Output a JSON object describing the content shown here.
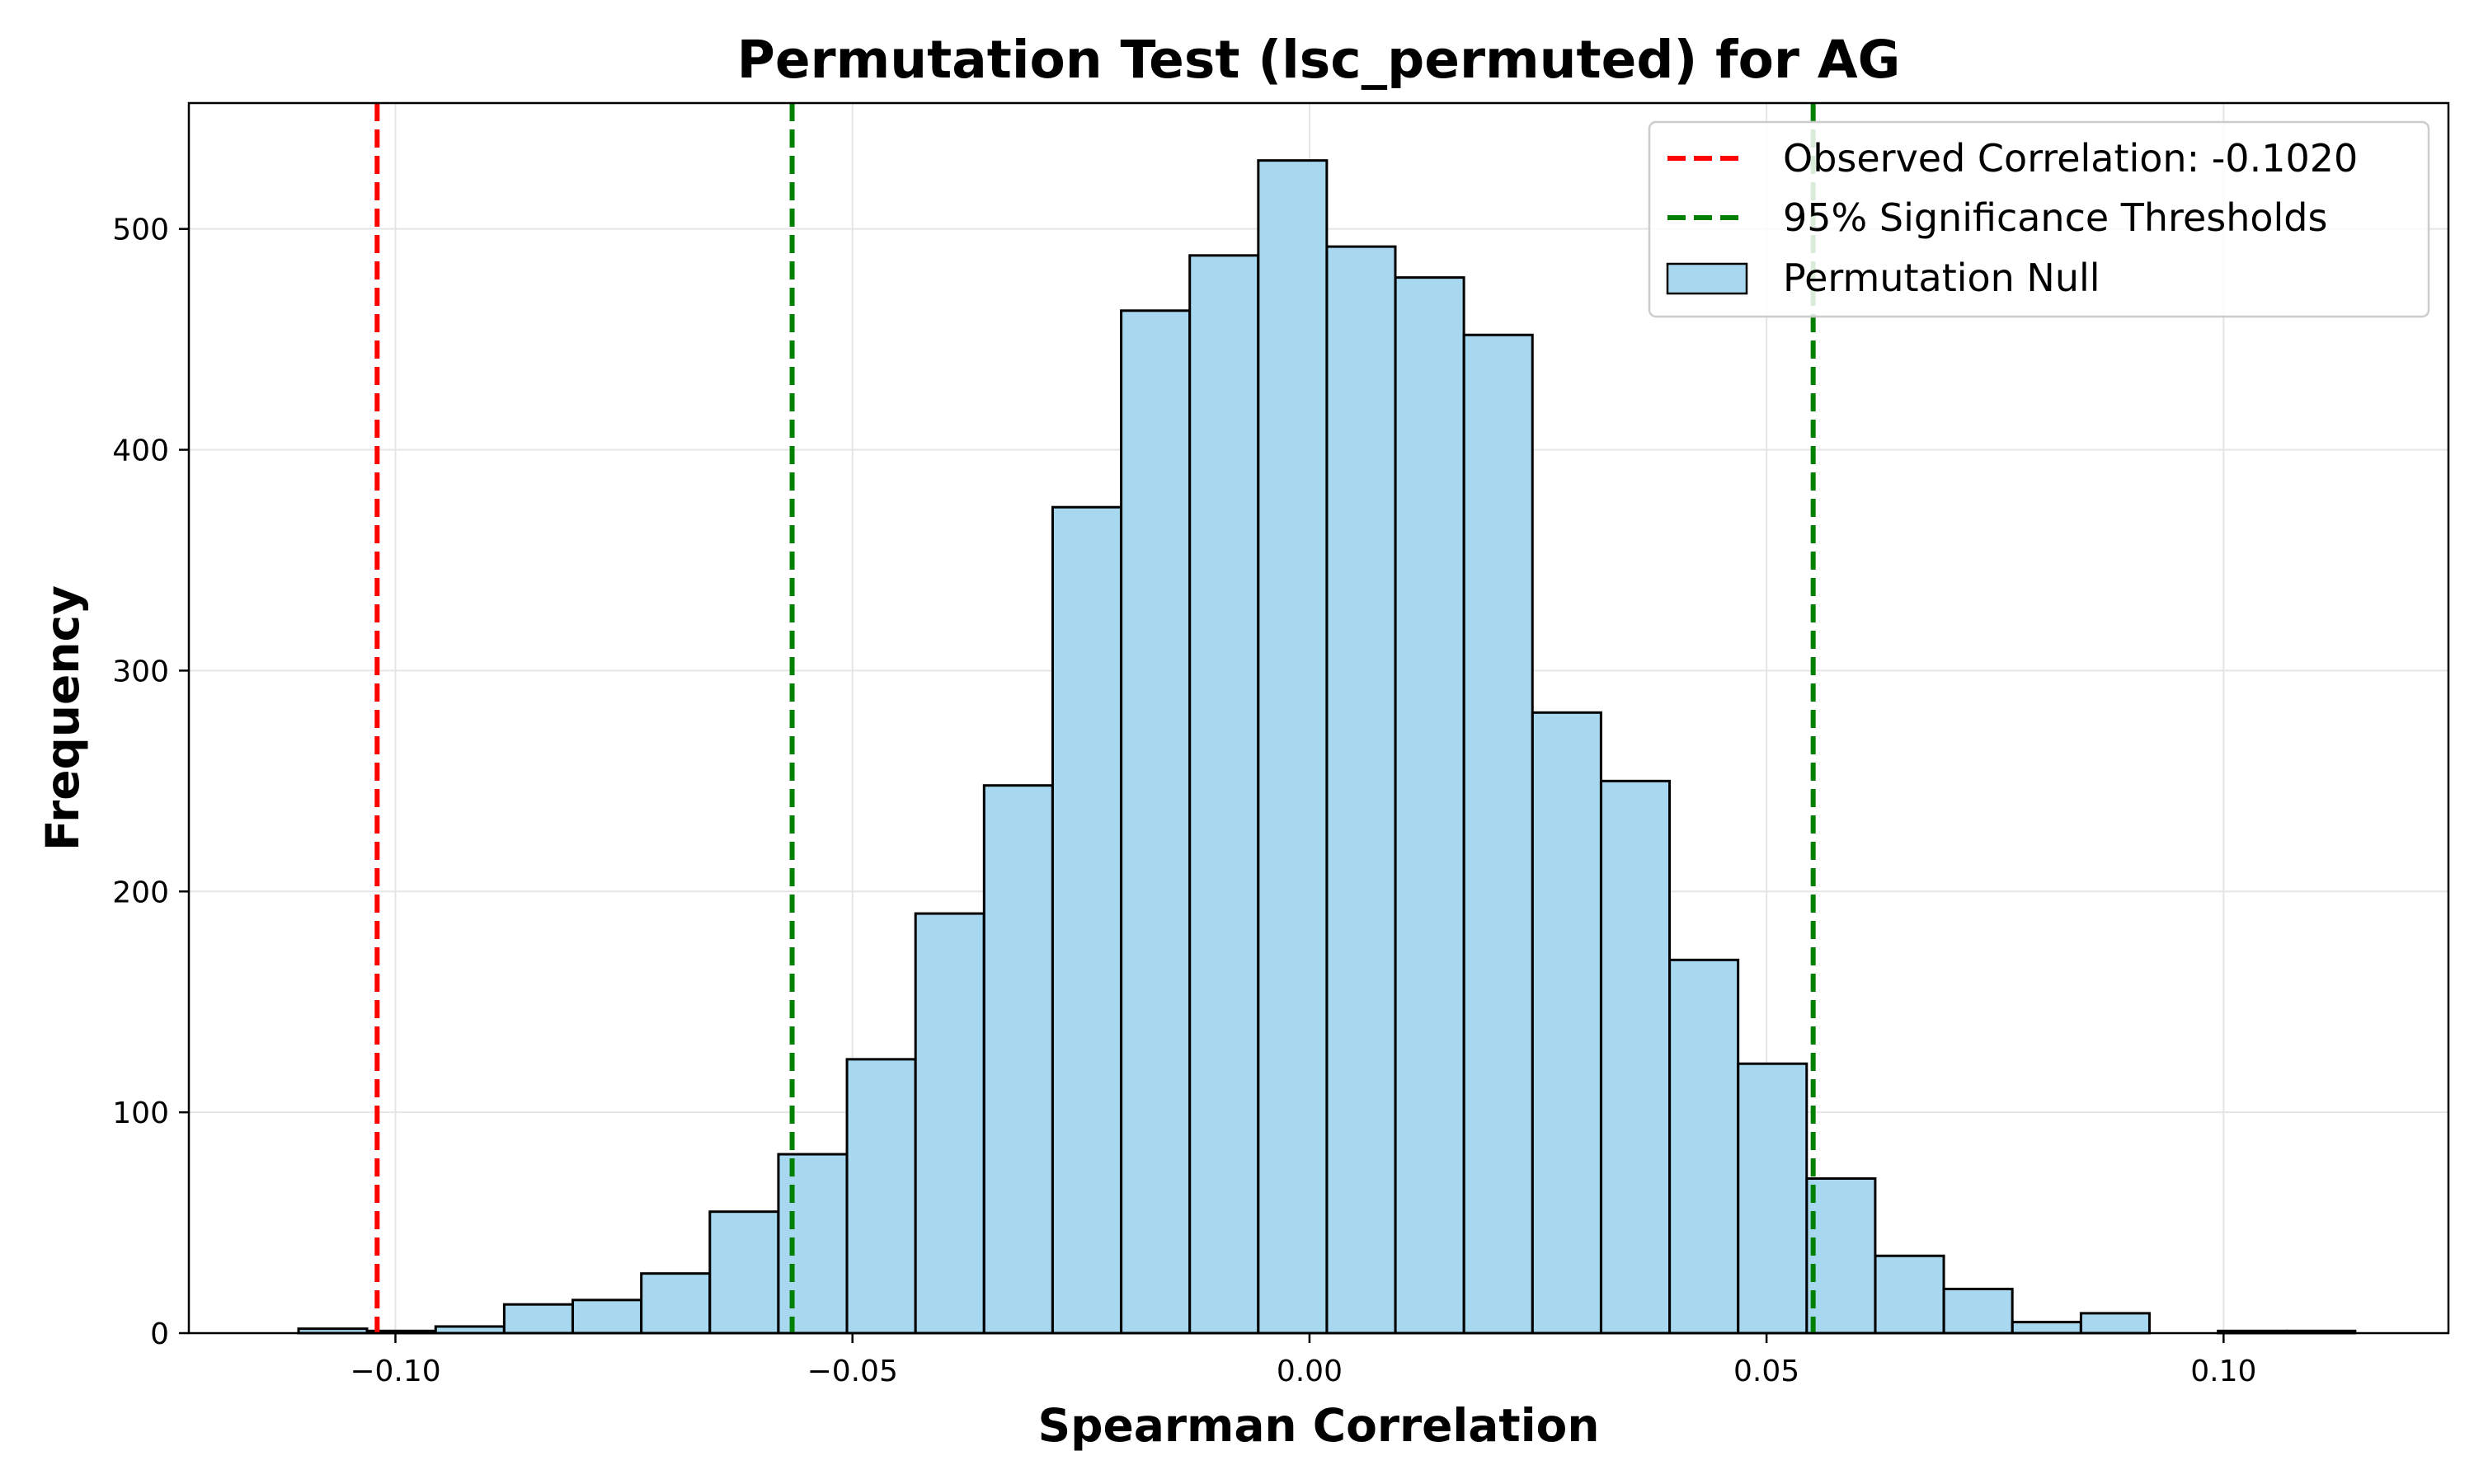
{
  "chart_data": {
    "type": "bar",
    "title": "Permutation Test (lsc_permuted) for AG",
    "xlabel": "Spearman Correlation",
    "ylabel": "Frequency",
    "xlim": [
      -0.1226,
      0.1246
    ],
    "ylim": [
      0,
      557
    ],
    "grid": true,
    "legend_position": "top-right",
    "bin_width": 0.00749,
    "bins": [
      {
        "x0": -0.1106,
        "count": 2
      },
      {
        "x0": -0.1031,
        "count": 1
      },
      {
        "x0": -0.0956,
        "count": 3
      },
      {
        "x0": -0.0881,
        "count": 13
      },
      {
        "x0": -0.0806,
        "count": 15
      },
      {
        "x0": -0.0731,
        "count": 27
      },
      {
        "x0": -0.0656,
        "count": 55
      },
      {
        "x0": -0.0581,
        "count": 81
      },
      {
        "x0": -0.0506,
        "count": 124
      },
      {
        "x0": -0.0431,
        "count": 190
      },
      {
        "x0": -0.0356,
        "count": 248
      },
      {
        "x0": -0.0281,
        "count": 374
      },
      {
        "x0": -0.0206,
        "count": 463
      },
      {
        "x0": -0.0131,
        "count": 488
      },
      {
        "x0": -0.0056,
        "count": 531
      },
      {
        "x0": 0.0019,
        "count": 492
      },
      {
        "x0": 0.0094,
        "count": 478
      },
      {
        "x0": 0.0169,
        "count": 452
      },
      {
        "x0": 0.0244,
        "count": 281
      },
      {
        "x0": 0.0319,
        "count": 250
      },
      {
        "x0": 0.0394,
        "count": 169
      },
      {
        "x0": 0.0469,
        "count": 122
      },
      {
        "x0": 0.0544,
        "count": 70
      },
      {
        "x0": 0.0619,
        "count": 35
      },
      {
        "x0": 0.0694,
        "count": 20
      },
      {
        "x0": 0.0769,
        "count": 5
      },
      {
        "x0": 0.0844,
        "count": 9
      },
      {
        "x0": 0.0919,
        "count": 0
      },
      {
        "x0": 0.0994,
        "count": 1
      },
      {
        "x0": 0.1069,
        "count": 1
      }
    ],
    "observed_correlation": -0.102,
    "thresholds": [
      -0.0566,
      0.0551
    ],
    "x_ticks": [
      -0.1,
      -0.05,
      0.0,
      0.05,
      0.1
    ],
    "x_tick_labels": [
      "−0.10",
      "−0.05",
      "0.00",
      "0.05",
      "0.10"
    ],
    "y_ticks": [
      0,
      100,
      200,
      300,
      400,
      500
    ],
    "y_tick_labels": [
      "0",
      "100",
      "200",
      "300",
      "400",
      "500"
    ],
    "legend": [
      {
        "label": "Observed Correlation: -0.1020",
        "kind": "dashed-line",
        "color": "#ff0000"
      },
      {
        "label": "95% Significance Thresholds",
        "kind": "dashed-line",
        "color": "#008000"
      },
      {
        "label": "Permutation Null",
        "kind": "patch",
        "color": "#a8d8ef"
      }
    ],
    "colors": {
      "bar_fill": "#a8d8ef",
      "bar_edge": "#000000",
      "observed": "#ff0000",
      "threshold": "#008000",
      "grid": "#e5e5e5"
    }
  }
}
